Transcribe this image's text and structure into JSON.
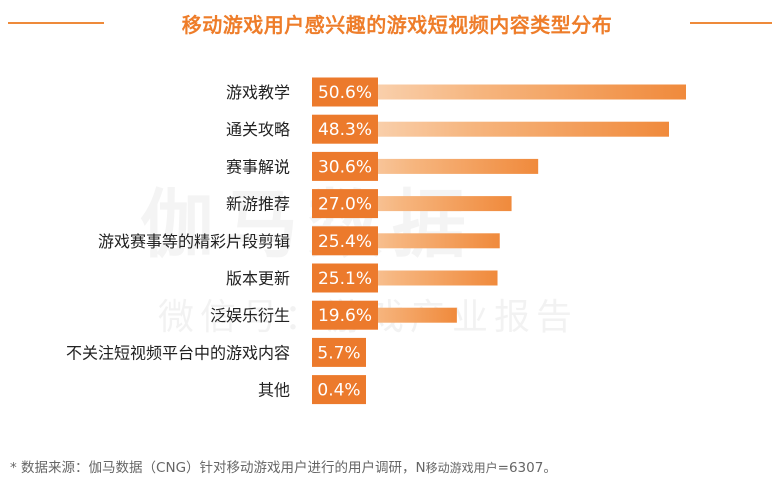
{
  "title": "移动游戏用户感兴趣的游戏短视频内容类型分布",
  "watermark": {
    "line1": "伽马数据",
    "line2": "微信号：游戏产业报告"
  },
  "footnote": {
    "prefix": "*  数据来源：伽马数据（CNG）针对移动游戏用户进行的用户调研，N",
    "sub": "移动游戏用户",
    "suffix": "=6307。"
  },
  "colors": {
    "accent": "#ee7d2a",
    "bar": "#f08a3c",
    "bar_light": "#fbe0c8",
    "label_box": "#ec7a2c"
  },
  "chart_data": {
    "type": "bar",
    "orientation": "horizontal",
    "title": "移动游戏用户感兴趣的游戏短视频内容类型分布",
    "categories": [
      "游戏教学",
      "通关攻略",
      "赛事解说",
      "新游推荐",
      "游戏赛事等的精彩片段剪辑",
      "版本更新",
      "泛娱乐衍生",
      "不关注短视频平台中的游戏内容",
      "其他"
    ],
    "values": [
      50.6,
      48.3,
      30.6,
      27.0,
      25.4,
      25.1,
      19.6,
      5.7,
      0.4
    ],
    "labels": [
      "50.6%",
      "48.3%",
      "30.6%",
      "27.0%",
      "25.4%",
      "25.1%",
      "19.6%",
      "5.7%",
      "0.4%"
    ],
    "unit": "%",
    "xlim": [
      0,
      50.6
    ],
    "grid": false,
    "legend": "none"
  }
}
